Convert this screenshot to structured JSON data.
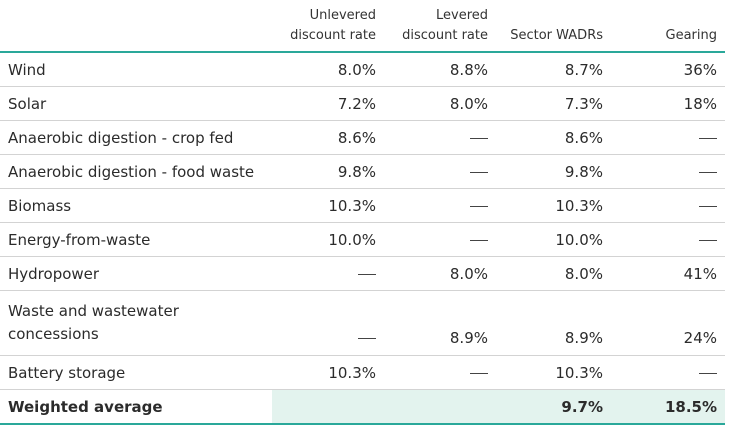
{
  "header": {
    "col1": "Unlevered discount rate",
    "col2": "Levered discount rate",
    "col3": "Sector WADRs",
    "col4": "Gearing"
  },
  "rows": [
    {
      "name": "Wind",
      "unlevered": "8.0%",
      "levered": "8.8%",
      "wadr": "8.7%",
      "gearing": "36%"
    },
    {
      "name": "Solar",
      "unlevered": "7.2%",
      "levered": "8.0%",
      "wadr": "7.3%",
      "gearing": "18%"
    },
    {
      "name": "Anaerobic digestion - crop fed",
      "unlevered": "8.6%",
      "levered": "—",
      "wadr": "8.6%",
      "gearing": "—"
    },
    {
      "name": "Anaerobic digestion - food waste",
      "unlevered": "9.8%",
      "levered": "—",
      "wadr": "9.8%",
      "gearing": "—"
    },
    {
      "name": "Biomass",
      "unlevered": "10.3%",
      "levered": "—",
      "wadr": "10.3%",
      "gearing": "—"
    },
    {
      "name": "Energy-from-waste",
      "unlevered": "10.0%",
      "levered": "—",
      "wadr": "10.0%",
      "gearing": "—"
    },
    {
      "name": "Hydropower",
      "unlevered": "—",
      "levered": "8.0%",
      "wadr": "8.0%",
      "gearing": "41%"
    },
    {
      "name": "Waste and wastewater concessions",
      "unlevered": "—",
      "levered": "8.9%",
      "wadr": "8.9%",
      "gearing": "24%"
    },
    {
      "name": "Battery storage",
      "unlevered": "10.3%",
      "levered": "—",
      "wadr": "10.3%",
      "gearing": "—"
    }
  ],
  "total": {
    "name": "Weighted average",
    "unlevered": "",
    "levered": "",
    "wadr": "9.7%",
    "gearing": "18.5%"
  }
}
